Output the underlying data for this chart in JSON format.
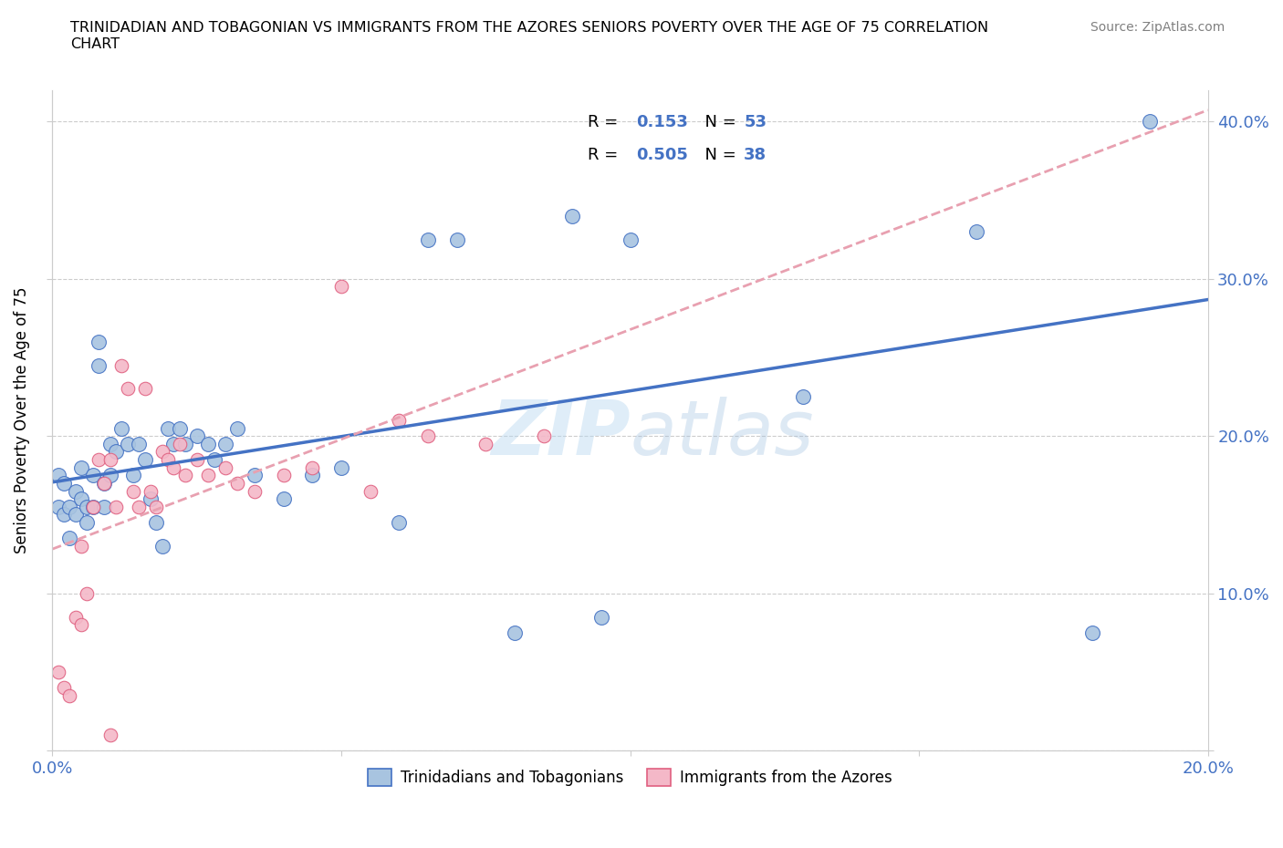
{
  "title": "TRINIDADIAN AND TOBAGONIAN VS IMMIGRANTS FROM THE AZORES SENIORS POVERTY OVER THE AGE OF 75 CORRELATION\nCHART",
  "source": "Source: ZipAtlas.com",
  "ylabel": "Seniors Poverty Over the Age of 75",
  "xlim": [
    0.0,
    0.2
  ],
  "ylim": [
    0.0,
    0.42
  ],
  "xticks": [
    0.0,
    0.05,
    0.1,
    0.15,
    0.2
  ],
  "yticks": [
    0.0,
    0.1,
    0.2,
    0.3,
    0.4
  ],
  "blue_color": "#a8c4e0",
  "blue_edge_color": "#4472c4",
  "pink_color": "#f4b8c8",
  "pink_edge_color": "#e06080",
  "blue_line_color": "#4472c4",
  "pink_line_color": "#e8a0b0",
  "R_blue": 0.153,
  "N_blue": 53,
  "R_pink": 0.505,
  "N_pink": 38,
  "legend_label_blue": "Trinidadians and Tobagonians",
  "legend_label_pink": "Immigrants from the Azores",
  "watermark": "ZIP atlas",
  "blue_scatter_x": [
    0.001,
    0.001,
    0.002,
    0.002,
    0.003,
    0.003,
    0.004,
    0.004,
    0.005,
    0.005,
    0.006,
    0.006,
    0.007,
    0.007,
    0.008,
    0.008,
    0.009,
    0.009,
    0.01,
    0.01,
    0.011,
    0.012,
    0.013,
    0.014,
    0.015,
    0.016,
    0.017,
    0.018,
    0.019,
    0.02,
    0.021,
    0.022,
    0.023,
    0.025,
    0.027,
    0.028,
    0.03,
    0.032,
    0.035,
    0.04,
    0.045,
    0.05,
    0.06,
    0.065,
    0.07,
    0.08,
    0.09,
    0.095,
    0.1,
    0.13,
    0.16,
    0.18,
    0.19
  ],
  "blue_scatter_y": [
    0.175,
    0.155,
    0.17,
    0.15,
    0.155,
    0.135,
    0.165,
    0.15,
    0.18,
    0.16,
    0.155,
    0.145,
    0.175,
    0.155,
    0.26,
    0.245,
    0.17,
    0.155,
    0.195,
    0.175,
    0.19,
    0.205,
    0.195,
    0.175,
    0.195,
    0.185,
    0.16,
    0.145,
    0.13,
    0.205,
    0.195,
    0.205,
    0.195,
    0.2,
    0.195,
    0.185,
    0.195,
    0.205,
    0.175,
    0.16,
    0.175,
    0.18,
    0.145,
    0.325,
    0.325,
    0.075,
    0.34,
    0.085,
    0.325,
    0.225,
    0.33,
    0.075,
    0.4
  ],
  "pink_scatter_x": [
    0.001,
    0.002,
    0.003,
    0.004,
    0.005,
    0.005,
    0.006,
    0.007,
    0.008,
    0.009,
    0.01,
    0.011,
    0.012,
    0.013,
    0.014,
    0.015,
    0.016,
    0.017,
    0.018,
    0.019,
    0.02,
    0.021,
    0.022,
    0.023,
    0.025,
    0.027,
    0.03,
    0.032,
    0.035,
    0.04,
    0.045,
    0.05,
    0.055,
    0.06,
    0.065,
    0.075,
    0.085,
    0.01
  ],
  "pink_scatter_y": [
    0.05,
    0.04,
    0.035,
    0.085,
    0.13,
    0.08,
    0.1,
    0.155,
    0.185,
    0.17,
    0.185,
    0.155,
    0.245,
    0.23,
    0.165,
    0.155,
    0.23,
    0.165,
    0.155,
    0.19,
    0.185,
    0.18,
    0.195,
    0.175,
    0.185,
    0.175,
    0.18,
    0.17,
    0.165,
    0.175,
    0.18,
    0.295,
    0.165,
    0.21,
    0.2,
    0.195,
    0.2,
    0.01
  ]
}
